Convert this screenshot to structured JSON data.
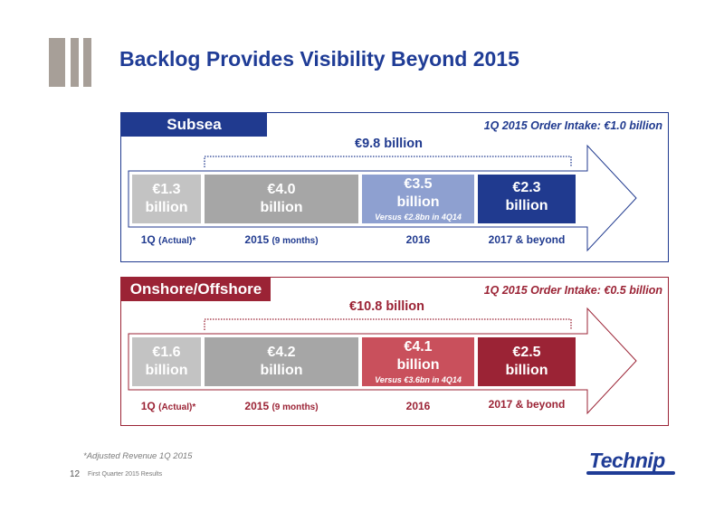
{
  "slide": {
    "title": "Backlog Provides Visibility Beyond 2015",
    "footnote": "*Adjusted Revenue 1Q 2015",
    "page_number": "12",
    "footer_title": "First Quarter 2015 Results",
    "brand": "Technip"
  },
  "panels": [
    {
      "name": "Subsea",
      "order_intake": "1Q 2015 Order Intake: €1.0 billion",
      "total": "€9.8 billion",
      "accent_color": "#203a8f",
      "segments": [
        {
          "value": "€1.3",
          "unit": "billion",
          "note": "",
          "color": "#c3c3c3",
          "label": "1Q",
          "label_qualifier": "(Actual)*"
        },
        {
          "value": "€4.0",
          "unit": "billion",
          "note": "",
          "color": "#a6a6a6",
          "label": "2015",
          "label_qualifier": "(9 months)"
        },
        {
          "value": "€3.5",
          "unit": "billion",
          "note": "Versus €2.8bn in 4Q14",
          "color": "#8ea0d0",
          "label": "2016",
          "label_qualifier": ""
        },
        {
          "value": "€2.3",
          "unit": "billion",
          "note": "",
          "color": "#203a8f",
          "label": "2017 & beyond",
          "label_qualifier": ""
        }
      ]
    },
    {
      "name": "Onshore/Offshore",
      "order_intake": "1Q 2015 Order Intake: €0.5 billion",
      "total": "€10.8 billion",
      "accent_color": "#9b2335",
      "segments": [
        {
          "value": "€1.6",
          "unit": "billion",
          "note": "",
          "color": "#c3c3c3",
          "label": "1Q",
          "label_qualifier": "(Actual)*"
        },
        {
          "value": "€4.2",
          "unit": "billion",
          "note": "",
          "color": "#a6a6a6",
          "label": "2015",
          "label_qualifier": "(9 months)"
        },
        {
          "value": "€4.1",
          "unit": "billion",
          "note": "Versus €3.6bn in 4Q14",
          "color": "#c9505c",
          "label": "2016",
          "label_qualifier": ""
        },
        {
          "value": "€2.5",
          "unit": "billion",
          "note": "",
          "color": "#9b2335",
          "label": "2017 & beyond",
          "label_qualifier": ""
        }
      ]
    }
  ]
}
